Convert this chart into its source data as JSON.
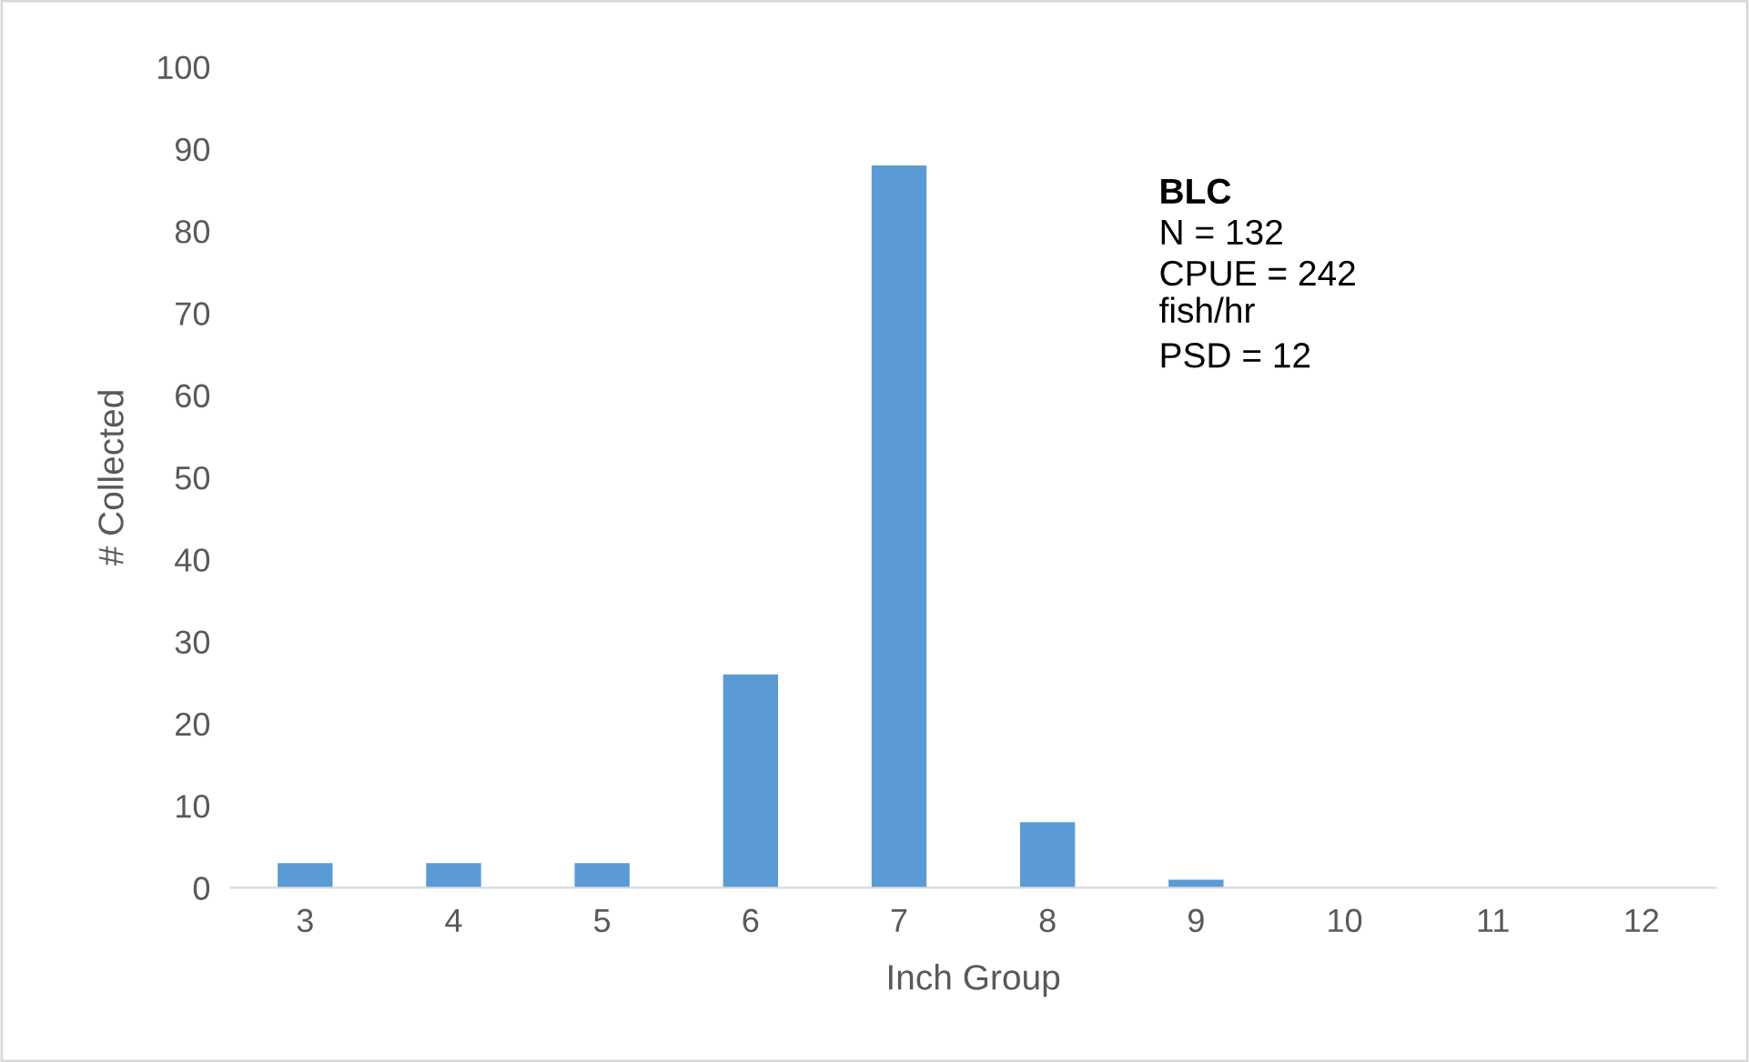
{
  "chart_data": {
    "type": "bar",
    "xlabel": "Inch Group",
    "ylabel": "# Collected",
    "categories": [
      "3",
      "4",
      "5",
      "6",
      "7",
      "8",
      "9",
      "10",
      "11",
      "12"
    ],
    "values": [
      3,
      3,
      3,
      26,
      88,
      8,
      1,
      0,
      0,
      0
    ],
    "color": "#5b9bd5",
    "ylim": [
      0,
      100
    ],
    "yticks": [
      0,
      10,
      20,
      30,
      40,
      50,
      60,
      70,
      80,
      90,
      100
    ],
    "grid": false,
    "legend": false,
    "annotations": [
      "BLC",
      "N = 132",
      "CPUE = 242\nfish/hr",
      "PSD = 12"
    ]
  }
}
